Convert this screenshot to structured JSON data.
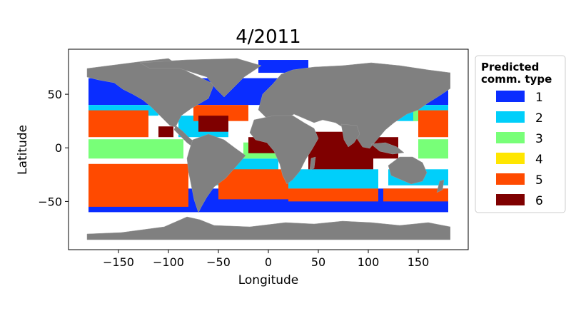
{
  "title": "4/2011",
  "map": {
    "x_label": "Longitude",
    "y_label": "Latitude",
    "x_range": [
      -200,
      200
    ],
    "y_range": [
      -95,
      92
    ],
    "x_ticks": [
      -150,
      -100,
      -50,
      0,
      50,
      100,
      150
    ],
    "y_ticks": [
      50,
      0,
      -50
    ],
    "land_color": "#808080",
    "background": "#ffffff",
    "regions": [
      {
        "type": 1,
        "color": "#0a2dff",
        "bands": [
          [
            -180,
            180,
            40,
            65
          ],
          [
            -180,
            180,
            -60,
            -38
          ],
          [
            -10,
            40,
            70,
            82
          ],
          [
            -95,
            -50,
            45,
            62
          ]
        ]
      },
      {
        "type": 2,
        "color": "#00cffa",
        "bands": [
          [
            -180,
            -110,
            30,
            40
          ],
          [
            -90,
            -40,
            10,
            30
          ],
          [
            -55,
            10,
            -35,
            -10
          ],
          [
            20,
            110,
            -38,
            -20
          ],
          [
            120,
            180,
            -35,
            -20
          ],
          [
            110,
            180,
            25,
            40
          ]
        ]
      },
      {
        "type": 3,
        "color": "#78ff78",
        "bands": [
          [
            -180,
            -85,
            -10,
            8
          ],
          [
            -25,
            10,
            -10,
            5
          ],
          [
            150,
            180,
            -10,
            8
          ],
          [
            145,
            180,
            25,
            35
          ]
        ]
      },
      {
        "type": 4,
        "color": "#ffe600",
        "bands": []
      },
      {
        "type": 5,
        "color": "#ff4a00",
        "bands": [
          [
            -180,
            -120,
            10,
            35
          ],
          [
            -180,
            -80,
            -55,
            -15
          ],
          [
            -50,
            20,
            -48,
            -20
          ],
          [
            20,
            110,
            -50,
            -38
          ],
          [
            150,
            180,
            10,
            35
          ],
          [
            115,
            180,
            -50,
            -38
          ],
          [
            -75,
            -20,
            25,
            40
          ]
        ]
      },
      {
        "type": 6,
        "color": "#7f0000",
        "bands": [
          [
            -20,
            10,
            -5,
            10
          ],
          [
            40,
            105,
            -20,
            15
          ],
          [
            105,
            130,
            -10,
            10
          ],
          [
            -110,
            -95,
            10,
            20
          ],
          [
            -70,
            -40,
            15,
            30
          ]
        ]
      }
    ]
  },
  "legend": {
    "title_line1": "Predicted",
    "title_line2": "comm. type",
    "items": [
      {
        "label": "1",
        "color": "#0a2dff"
      },
      {
        "label": "2",
        "color": "#00cffa"
      },
      {
        "label": "3",
        "color": "#78ff78"
      },
      {
        "label": "4",
        "color": "#ffe600"
      },
      {
        "label": "5",
        "color": "#ff4a00"
      },
      {
        "label": "6",
        "color": "#7f0000"
      }
    ]
  }
}
